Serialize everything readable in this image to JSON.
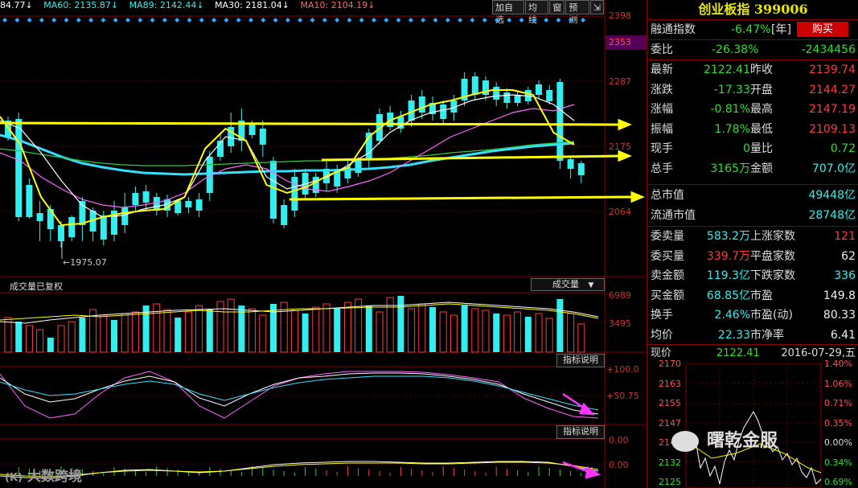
{
  "topbar": {
    "ma_first": "84.77",
    "ma60": "MA60: 2135.87",
    "ma89": "MA89: 2142.44",
    "ma30": "MA30: 2181.04",
    "ma10": "MA10: 2104.19",
    "arrow": "↓"
  },
  "buttons": [
    "加自选",
    "均线",
    "窗",
    "预测",
    "⇲"
  ],
  "price_axis": [
    "2398",
    "2353",
    "2287",
    "2175",
    "2064"
  ],
  "low_marker": "←1975.07",
  "volume_panel": {
    "label": "成交量已复权",
    "select": "成交量",
    "ticks": [
      "6989",
      "3495"
    ]
  },
  "ind1": {
    "button": "指标说明",
    "ticks": [
      "100.0",
      "50.75"
    ]
  },
  "ind2": {
    "button": "指标说明",
    "ticks": [
      "0.00",
      "0.00"
    ]
  },
  "watermark_left": "大数跨境",
  "watermark_right": "曙乾金服",
  "right": {
    "title": "创业板指 399006",
    "rzzs_label": "融通指数",
    "rzzs_value": "-6.47%",
    "rzzs_unit": "[年]",
    "buy_label": "购买",
    "wb_label": "委比",
    "wb_value": "-26.38%",
    "wb_diff": "-2434456",
    "rows1": [
      {
        "l1": "最新",
        "v1": "2122.41",
        "l2": "昨收",
        "v2": "2139.74"
      },
      {
        "l1": "涨跌",
        "v1": "-17.33",
        "l2": "开盘",
        "v2": "2144.27"
      },
      {
        "l1": "涨幅",
        "v1": "-0.81%",
        "l2": "最高",
        "v2": "2147.19"
      },
      {
        "l1": "振幅",
        "v1": "1.78%",
        "l2": "最低",
        "v2": "2109.13"
      },
      {
        "l1": "现手",
        "v1": "0",
        "l2": "量比",
        "v2": "0.72"
      },
      {
        "l1": "总手",
        "v1": "3165万",
        "l2": "金额",
        "v2": "707.0亿"
      }
    ],
    "mktcap_label": "总市值",
    "mktcap": "49448亿",
    "float_label": "流通市值",
    "float": "28748亿",
    "rows2": [
      {
        "l1": "委卖量",
        "v1": "583.2万",
        "l2": "上涨家数",
        "v2": "121"
      },
      {
        "l1": "委买量",
        "v1": "339.7万",
        "l2": "平盘家数",
        "v2": "62"
      },
      {
        "l1": "卖金额",
        "v1": "119.3亿",
        "l2": "下跌家数",
        "v2": "336"
      },
      {
        "l1": "买金额",
        "v1": "68.85亿",
        "l2": "市盈",
        "v2": "149.8"
      },
      {
        "l1": "换手",
        "v1": "2.46%",
        "l2": "市盈(动)",
        "v2": "80.33"
      },
      {
        "l1": "均价",
        "v1": "22.33",
        "l2": "市净率",
        "v2": "6.41"
      }
    ],
    "price_label": "现价",
    "price": "2122.41",
    "date": "2016-07-29,五",
    "mini_left": [
      "2170",
      "2163",
      "2155",
      "2147",
      "2140",
      "2132",
      "2125"
    ],
    "mini_right": [
      "1.40%",
      "1.06%",
      "0.71%",
      "0.35%",
      "0.00%",
      "0.34%",
      "0.69%"
    ]
  },
  "colors": {
    "up": "#ff3b3b",
    "down": "#3ee",
    "ma_white": "#ffffff",
    "ma_yellow": "#ffff00",
    "ma_pink": "#ff66ff",
    "ma_green": "#2ecc40",
    "ma_cyan": "#33e0ff",
    "frame": "#800000"
  }
}
